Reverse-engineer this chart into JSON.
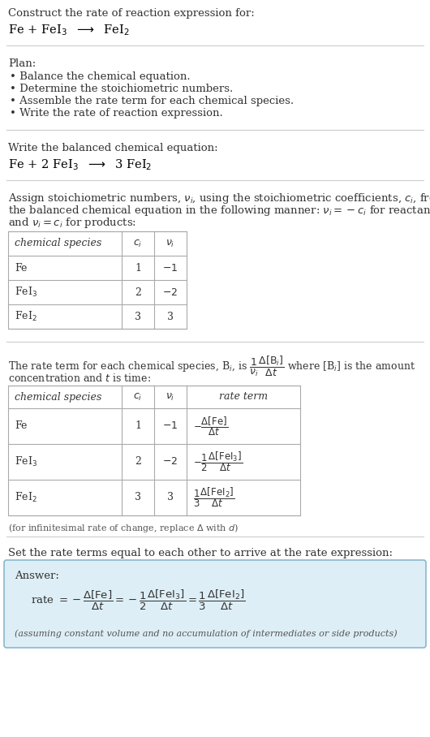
{
  "bg_color": "#ffffff",
  "title_text": "Construct the rate of reaction expression for:",
  "plan_header": "Plan:",
  "plan_items": [
    "• Balance the chemical equation.",
    "• Determine the stoichiometric numbers.",
    "• Assemble the rate term for each chemical species.",
    "• Write the rate of reaction expression."
  ],
  "balanced_header": "Write the balanced chemical equation:",
  "stoich_lines": [
    "Assign stoichiometric numbers, $\\nu_i$, using the stoichiometric coefficients, $c_i$, from",
    "the balanced chemical equation in the following manner: $\\nu_i = -c_i$ for reactants",
    "and $\\nu_i = c_i$ for products:"
  ],
  "rate_line1": "The rate term for each chemical species, B$_i$, is $\\dfrac{1}{\\nu_i}\\dfrac{\\Delta[\\mathrm{B}_i]}{\\Delta t}$ where [B$_i$] is the amount",
  "rate_line2": "concentration and $t$ is time:",
  "infinitesimal_note": "(for infinitesimal rate of change, replace $\\Delta$ with $d$)",
  "set_rate_header": "Set the rate terms equal to each other to arrive at the rate expression:",
  "answer_label": "Answer:",
  "answer_note": "(assuming constant volume and no accumulation of intermediates or side products)",
  "line_color": "#cccccc",
  "table_line_color": "#aaaaaa",
  "answer_bg": "#ddeef6",
  "answer_border": "#8ab8cc",
  "text_gray": "#555555"
}
